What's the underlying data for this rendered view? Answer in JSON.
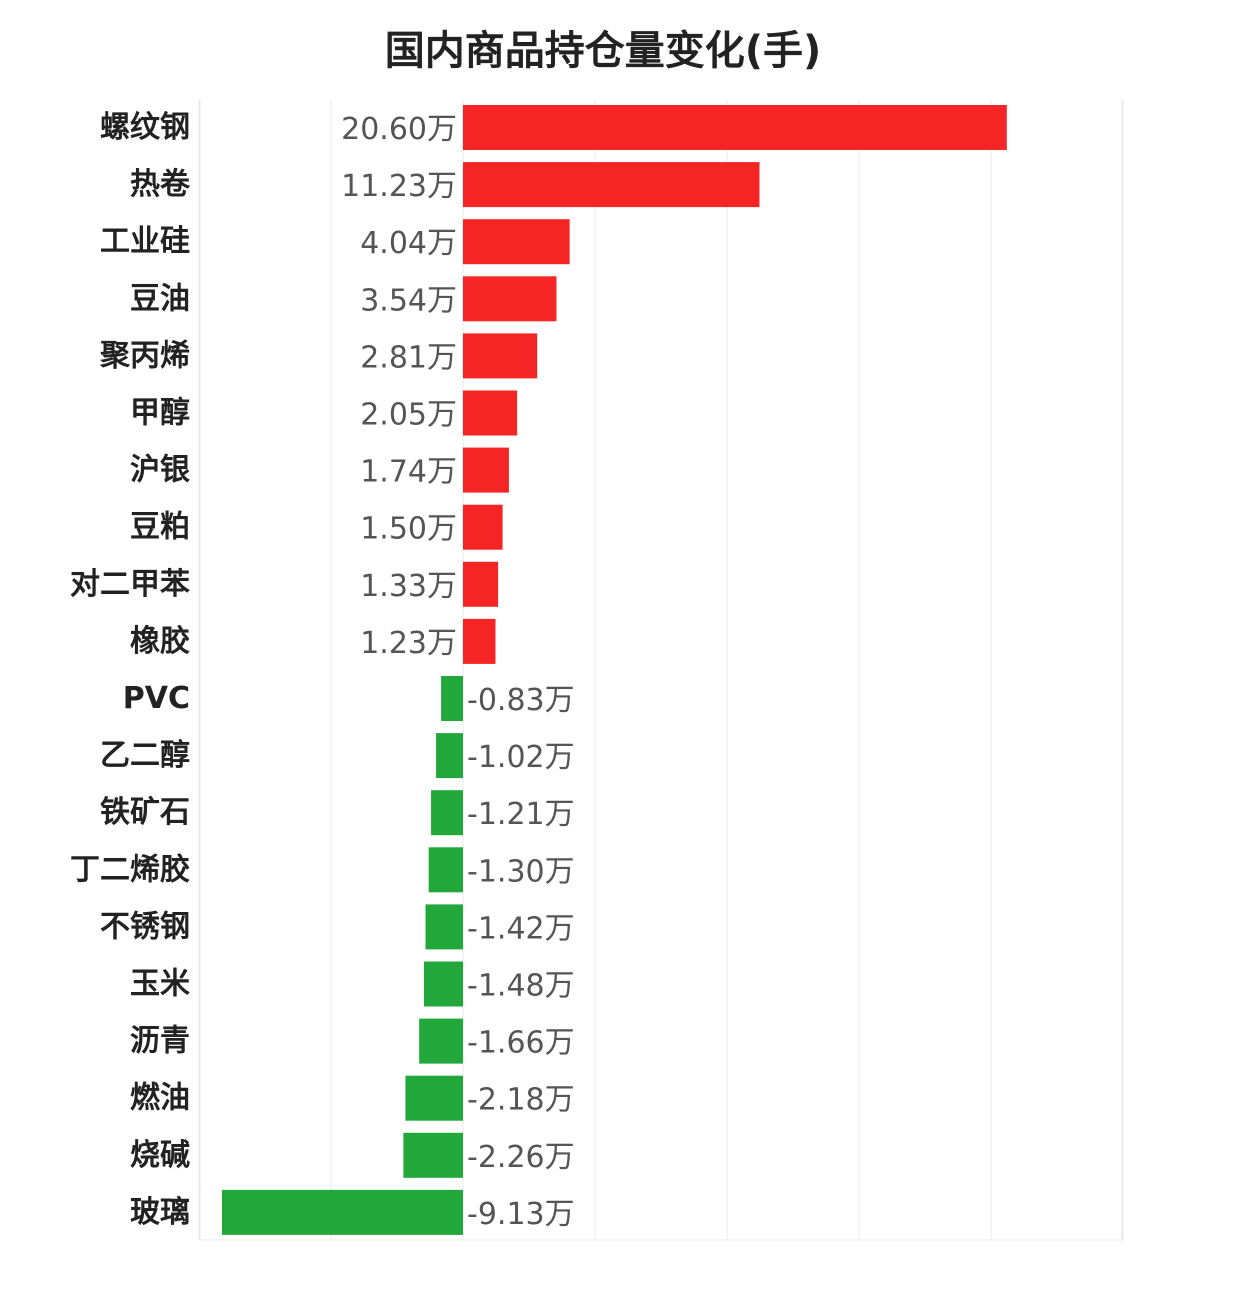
{
  "chart_data": {
    "type": "bar",
    "orientation": "horizontal",
    "title": "国内商品持仓量变化(手)",
    "unit": "万",
    "categories": [
      "螺纹钢",
      "热卷",
      "工业硅",
      "豆油",
      "聚丙烯",
      "甲醇",
      "沪银",
      "豆粕",
      "对二甲苯",
      "橡胶",
      "PVC",
      "乙二醇",
      "铁矿石",
      "丁二烯胶",
      "不锈钢",
      "玉米",
      "沥青",
      "燃油",
      "烧碱",
      "玻璃"
    ],
    "values": [
      20.6,
      11.23,
      4.04,
      3.54,
      2.81,
      2.05,
      1.74,
      1.5,
      1.33,
      1.23,
      -0.83,
      -1.02,
      -1.21,
      -1.3,
      -1.42,
      -1.48,
      -1.66,
      -2.18,
      -2.26,
      -9.13
    ],
    "value_labels": [
      "20.60万",
      "11.23万",
      "4.04万",
      "3.54万",
      "2.81万",
      "2.05万",
      "1.74万",
      "1.50万",
      "1.33万",
      "1.23万",
      "-0.83万",
      "-1.02万",
      "-1.21万",
      "-1.30万",
      "-1.42万",
      "-1.48万",
      "-1.66万",
      "-2.18万",
      "-2.26万",
      "-9.13万"
    ],
    "xlim": [
      -10,
      25
    ],
    "grid": true,
    "colors": {
      "positive": "#f52525",
      "negative": "#22a83a",
      "grid": "#e8e8e8"
    }
  }
}
